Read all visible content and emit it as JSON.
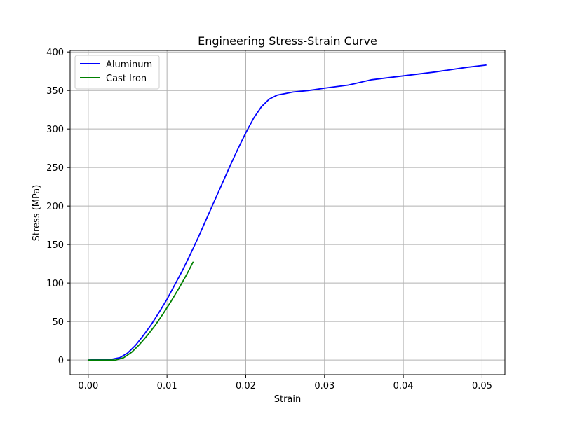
{
  "chart_data": {
    "type": "line",
    "title": "Engineering Stress-Strain Curve",
    "xlabel": "Strain",
    "ylabel": "Stress (MPa)",
    "xlim": [
      -0.0023,
      0.0529
    ],
    "ylim": [
      -19,
      402
    ],
    "xticks": [
      0.0,
      0.01,
      0.02,
      0.03,
      0.04,
      0.05
    ],
    "xtick_labels": [
      "0.00",
      "0.01",
      "0.02",
      "0.03",
      "0.04",
      "0.05"
    ],
    "yticks": [
      0,
      50,
      100,
      150,
      200,
      250,
      300,
      350,
      400
    ],
    "ytick_labels": [
      "0",
      "50",
      "100",
      "150",
      "200",
      "250",
      "300",
      "350",
      "400"
    ],
    "grid": true,
    "legend_position": "upper-left",
    "series": [
      {
        "name": "Aluminum",
        "color": "#0000ff",
        "x": [
          0.0,
          0.003,
          0.004,
          0.005,
          0.006,
          0.007,
          0.008,
          0.009,
          0.01,
          0.011,
          0.012,
          0.013,
          0.014,
          0.015,
          0.016,
          0.017,
          0.018,
          0.019,
          0.02,
          0.021,
          0.022,
          0.023,
          0.024,
          0.025,
          0.026,
          0.027,
          0.028,
          0.03,
          0.033,
          0.036,
          0.04,
          0.044,
          0.048,
          0.0505
        ],
        "y": [
          0,
          1,
          3,
          9,
          19,
          32,
          46,
          62,
          79,
          98,
          117,
          138,
          160,
          183,
          206,
          229,
          252,
          274,
          295,
          314,
          329,
          339,
          344,
          346,
          348,
          349,
          350,
          353,
          357,
          364,
          369,
          374,
          380,
          383
        ]
      },
      {
        "name": "Cast Iron",
        "color": "#008000",
        "x": [
          0.0,
          0.0035,
          0.0045,
          0.0055,
          0.0065,
          0.0075,
          0.0085,
          0.0095,
          0.0105,
          0.0115,
          0.0125,
          0.0133
        ],
        "y": [
          0,
          0,
          3,
          10,
          20,
          32,
          45,
          60,
          76,
          93,
          111,
          127
        ]
      }
    ]
  }
}
